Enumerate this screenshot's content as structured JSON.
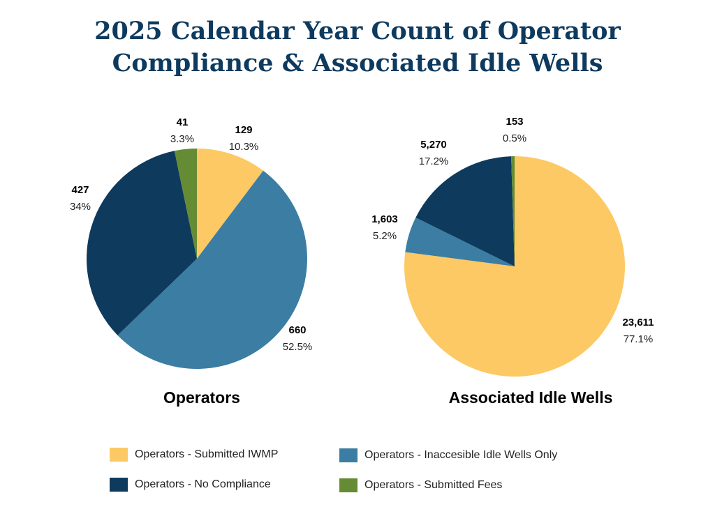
{
  "title": {
    "line1": "2025 Calendar Year Count of Operator",
    "line2": "Compliance & Associated Idle Wells"
  },
  "colors": {
    "submitted_iwmp": "#fdc964",
    "inaccessible": "#3b7da3",
    "no_compliance": "#0e3a5d",
    "submitted_fees": "#658c34"
  },
  "legend": [
    {
      "label": "Operators - Submitted IWMP",
      "color": "#fdc964"
    },
    {
      "label": "Operators - Inaccesible Idle Wells Only",
      "color": "#3b7da3"
    },
    {
      "label": "Operators - No Compliance",
      "color": "#0e3a5d"
    },
    {
      "label": "Operators - Submitted Fees",
      "color": "#658c34"
    }
  ],
  "chart_data": [
    {
      "type": "pie",
      "title": "Operators",
      "slices": [
        {
          "category": "Operators - Submitted IWMP",
          "value": 129,
          "value_label": "129",
          "percent_label": "10.3%",
          "color": "#fdc964"
        },
        {
          "category": "Operators - Inaccesible Idle Wells Only",
          "value": 660,
          "value_label": "660",
          "percent_label": "52.5%",
          "color": "#3b7da3"
        },
        {
          "category": "Operators - No Compliance",
          "value": 427,
          "value_label": "427",
          "percent_label": "34%",
          "color": "#0e3a5d"
        },
        {
          "category": "Operators - Submitted Fees",
          "value": 41,
          "value_label": "41",
          "percent_label": "3.3%",
          "color": "#658c34"
        }
      ]
    },
    {
      "type": "pie",
      "title": "Associated Idle Wells",
      "slices": [
        {
          "category": "Operators - Submitted IWMP",
          "value": 23611,
          "value_label": "23,611",
          "percent_label": "77.1%",
          "color": "#fdc964"
        },
        {
          "category": "Operators - Inaccesible Idle Wells Only",
          "value": 1603,
          "value_label": "1,603",
          "percent_label": "5.2%",
          "color": "#3b7da3"
        },
        {
          "category": "Operators - No Compliance",
          "value": 5270,
          "value_label": "5,270",
          "percent_label": "17.2%",
          "color": "#0e3a5d"
        },
        {
          "category": "Operators - Submitted Fees",
          "value": 153,
          "value_label": "153",
          "percent_label": "0.5%",
          "color": "#658c34"
        }
      ]
    }
  ]
}
